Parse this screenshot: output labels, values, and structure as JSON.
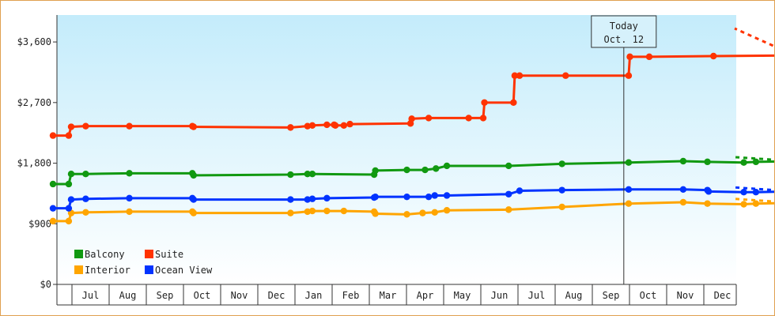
{
  "chart_data": {
    "type": "line",
    "title": "",
    "xlabel": "",
    "ylabel": "",
    "ylim": [
      0,
      4000
    ],
    "y_ticks": [
      0,
      900,
      1800,
      2700,
      3600
    ],
    "y_tick_labels": [
      "$0",
      "$900",
      "$1,800",
      "$2,700",
      "$3,600"
    ],
    "x_ticks": [
      "Jul",
      "Aug",
      "Sep",
      "Oct",
      "Nov",
      "Dec",
      "Jan",
      "Feb",
      "Mar",
      "Apr",
      "May",
      "Jun",
      "Jul",
      "Aug",
      "Sep",
      "Oct",
      "Nov",
      "Dec"
    ],
    "grid": false,
    "legend_placement": "bottom-left",
    "today_marker": {
      "line1": "Today",
      "line2": "Oct. 12",
      "x_day": 471
    },
    "series": [
      {
        "name": "Balcony",
        "color": "#119911",
        "points": [
          [
            0,
            1490
          ],
          [
            13,
            1490
          ],
          [
            15,
            1640
          ],
          [
            27,
            1640
          ],
          [
            63,
            1650
          ],
          [
            115,
            1650
          ],
          [
            116,
            1620
          ],
          [
            196,
            1630
          ],
          [
            210,
            1640
          ],
          [
            214,
            1640
          ],
          [
            265,
            1630
          ],
          [
            266,
            1690
          ],
          [
            292,
            1700
          ],
          [
            307,
            1700
          ],
          [
            316,
            1720
          ],
          [
            325,
            1760
          ],
          [
            376,
            1760
          ],
          [
            420,
            1790
          ],
          [
            475,
            1810
          ],
          [
            520,
            1830
          ],
          [
            540,
            1820
          ],
          [
            570,
            1810
          ],
          [
            580,
            1820
          ],
          [
            612,
            1830
          ]
        ]
      },
      {
        "name": "Suite",
        "color": "#ff3300",
        "points": [
          [
            0,
            2210
          ],
          [
            13,
            2210
          ],
          [
            15,
            2340
          ],
          [
            27,
            2350
          ],
          [
            63,
            2350
          ],
          [
            115,
            2350
          ],
          [
            116,
            2340
          ],
          [
            196,
            2330
          ],
          [
            210,
            2350
          ],
          [
            214,
            2360
          ],
          [
            226,
            2370
          ],
          [
            232,
            2370
          ],
          [
            233,
            2360
          ],
          [
            240,
            2360
          ],
          [
            245,
            2380
          ],
          [
            295,
            2390
          ],
          [
            296,
            2460
          ],
          [
            310,
            2470
          ],
          [
            343,
            2470
          ],
          [
            355,
            2470
          ],
          [
            356,
            2700
          ],
          [
            380,
            2700
          ],
          [
            381,
            3100
          ],
          [
            385,
            3100
          ],
          [
            423,
            3100
          ],
          [
            475,
            3100
          ],
          [
            476,
            3380
          ],
          [
            492,
            3380
          ],
          [
            545,
            3390
          ],
          [
            612,
            3400
          ]
        ]
      },
      {
        "name": "Interior",
        "color": "#ffa500",
        "points": [
          [
            0,
            940
          ],
          [
            13,
            940
          ],
          [
            15,
            1060
          ],
          [
            27,
            1070
          ],
          [
            63,
            1080
          ],
          [
            115,
            1080
          ],
          [
            116,
            1060
          ],
          [
            196,
            1060
          ],
          [
            210,
            1080
          ],
          [
            214,
            1090
          ],
          [
            226,
            1090
          ],
          [
            240,
            1090
          ],
          [
            265,
            1080
          ],
          [
            266,
            1050
          ],
          [
            292,
            1040
          ],
          [
            305,
            1060
          ],
          [
            315,
            1070
          ],
          [
            325,
            1100
          ],
          [
            376,
            1110
          ],
          [
            420,
            1150
          ],
          [
            475,
            1200
          ],
          [
            520,
            1220
          ],
          [
            540,
            1200
          ],
          [
            570,
            1190
          ],
          [
            580,
            1200
          ],
          [
            612,
            1210
          ]
        ]
      },
      {
        "name": "Ocean View",
        "color": "#0033ff",
        "points": [
          [
            0,
            1130
          ],
          [
            13,
            1130
          ],
          [
            15,
            1260
          ],
          [
            27,
            1270
          ],
          [
            63,
            1280
          ],
          [
            115,
            1280
          ],
          [
            116,
            1260
          ],
          [
            196,
            1260
          ],
          [
            210,
            1260
          ],
          [
            214,
            1270
          ],
          [
            226,
            1280
          ],
          [
            265,
            1290
          ],
          [
            266,
            1300
          ],
          [
            292,
            1300
          ],
          [
            310,
            1300
          ],
          [
            315,
            1320
          ],
          [
            325,
            1320
          ],
          [
            376,
            1340
          ],
          [
            385,
            1390
          ],
          [
            420,
            1400
          ],
          [
            475,
            1410
          ],
          [
            520,
            1410
          ],
          [
            540,
            1400
          ],
          [
            541,
            1380
          ],
          [
            570,
            1370
          ],
          [
            580,
            1370
          ],
          [
            612,
            1380
          ]
        ]
      }
    ],
    "forecast": [
      {
        "name": "Suite",
        "end_value": 3800
      },
      {
        "name": "Balcony",
        "end_value": 1890
      },
      {
        "name": "Ocean View",
        "end_value": 1440
      },
      {
        "name": "Interior",
        "end_value": 1270
      }
    ],
    "legend_items": [
      "Balcony",
      "Suite",
      "Interior",
      "Ocean View"
    ]
  }
}
